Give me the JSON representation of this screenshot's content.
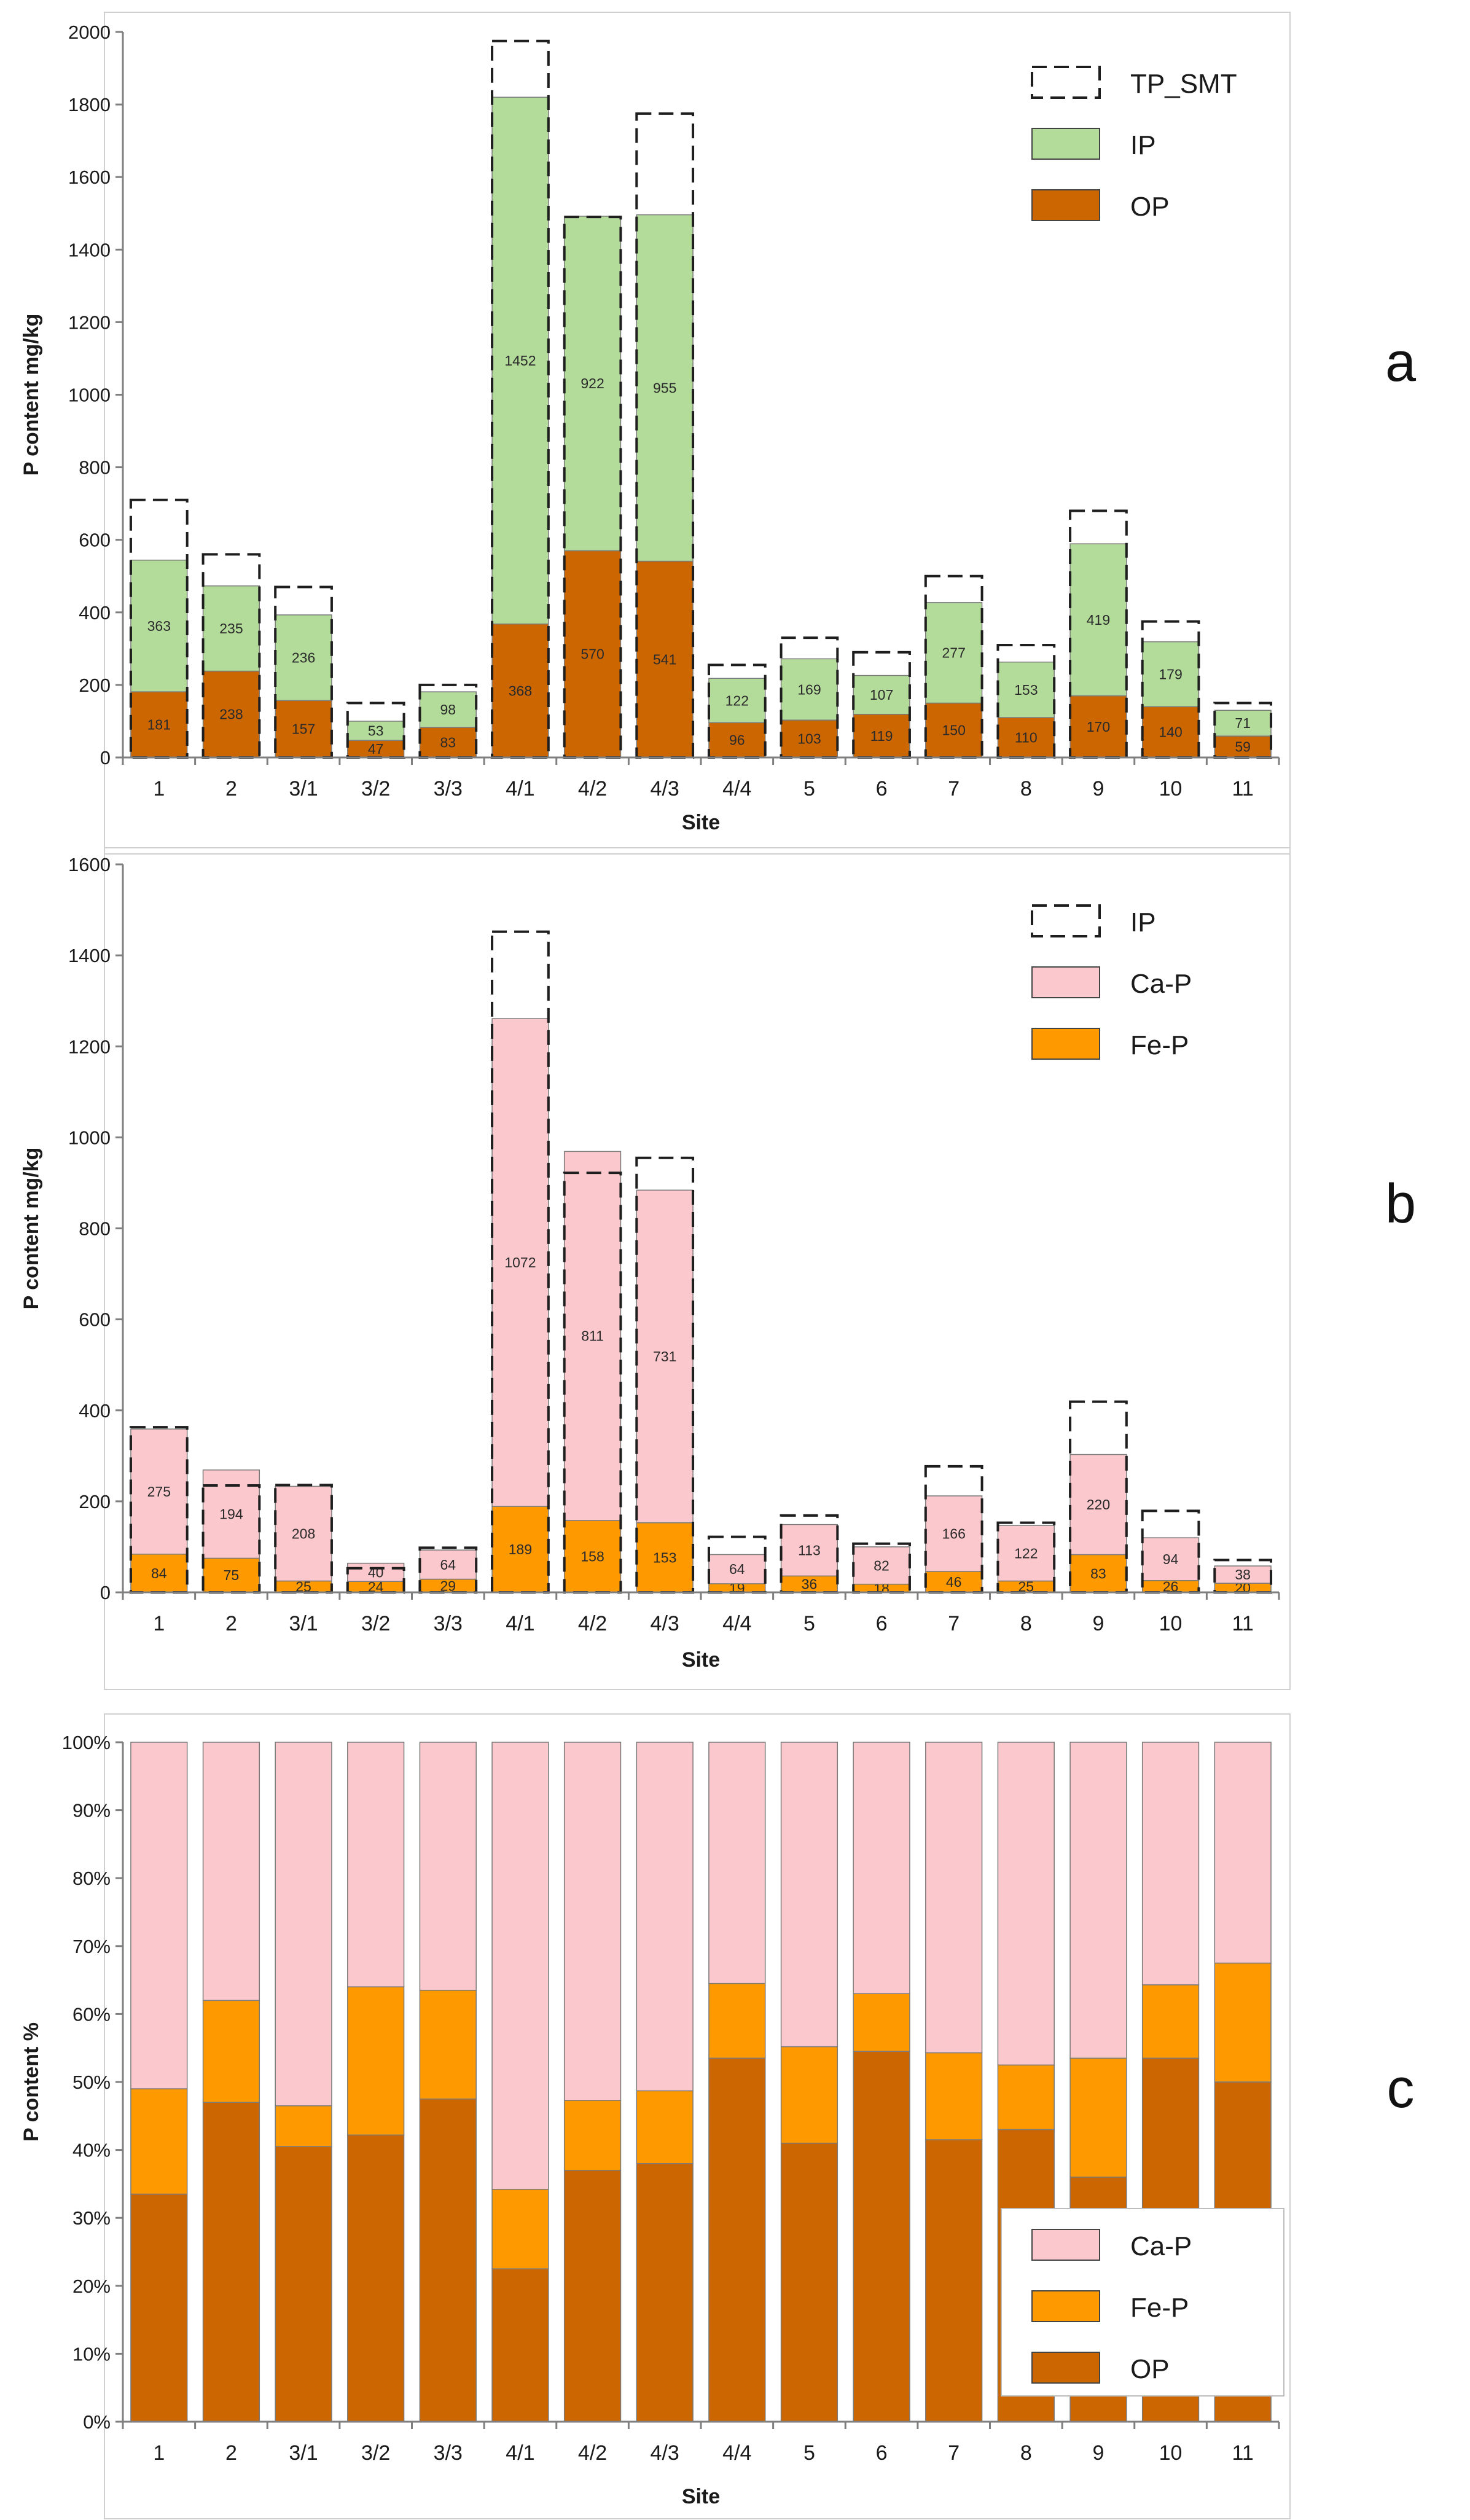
{
  "colors": {
    "ip": "#b3dc9a",
    "op": "#cc6600",
    "ca_p": "#fbc9cd",
    "fe_p": "#ff9900",
    "dash": "#1e1e1e",
    "axis": "#7f7f7f",
    "frame": "#d0d0d0"
  },
  "chart_data": [
    {
      "id": "a",
      "panel_label": "a",
      "type": "bar",
      "stacked": true,
      "title": "",
      "xlabel": "Site",
      "ylabel": "P content mg/kg",
      "ylim": [
        0,
        2000
      ],
      "yticks": [
        "0",
        "200",
        "400",
        "600",
        "800",
        "1000",
        "1200",
        "1400",
        "1600",
        "1800",
        "2000"
      ],
      "categories": [
        "1",
        "2",
        "3/1",
        "3/2",
        "3/3",
        "4/1",
        "4/2",
        "4/3",
        "4/4",
        "5",
        "6",
        "7",
        "8",
        "9",
        "10",
        "11"
      ],
      "series": [
        {
          "name": "OP",
          "color_key": "op",
          "labels": true,
          "values": [
            181,
            238,
            157,
            47,
            83,
            368,
            570,
            541,
            96,
            103,
            119,
            150,
            110,
            170,
            140,
            59
          ]
        },
        {
          "name": "IP",
          "color_key": "ip",
          "labels": true,
          "values": [
            363,
            235,
            236,
            53,
            98,
            1452,
            922,
            955,
            122,
            169,
            107,
            277,
            153,
            419,
            179,
            71
          ]
        }
      ],
      "outline": {
        "name": "TP_SMT",
        "values": [
          710,
          560,
          470,
          150,
          200,
          1975,
          1490,
          1775,
          255,
          330,
          290,
          500,
          310,
          680,
          375,
          150
        ]
      },
      "legend": {
        "position": "top-right",
        "items": [
          {
            "label": "TP_SMT",
            "style": "dashed"
          },
          {
            "label": "IP",
            "color_key": "ip"
          },
          {
            "label": "OP",
            "color_key": "op"
          }
        ]
      }
    },
    {
      "id": "b",
      "panel_label": "b",
      "type": "bar",
      "stacked": true,
      "title": "",
      "xlabel": "Site",
      "ylabel": "P content mg/kg",
      "ylim": [
        0,
        1600
      ],
      "yticks": [
        "0",
        "200",
        "400",
        "600",
        "800",
        "1000",
        "1200",
        "1400",
        "1600"
      ],
      "categories": [
        "1",
        "2",
        "3/1",
        "3/2",
        "3/3",
        "4/1",
        "4/2",
        "4/3",
        "4/4",
        "5",
        "6",
        "7",
        "8",
        "9",
        "10",
        "11"
      ],
      "series": [
        {
          "name": "Fe-P",
          "color_key": "fe_p",
          "labels": true,
          "values": [
            84,
            75,
            25,
            24,
            29,
            189,
            158,
            153,
            19,
            36,
            18,
            46,
            25,
            83,
            26,
            20
          ]
        },
        {
          "name": "Ca-P",
          "color_key": "ca_p",
          "labels": true,
          "values": [
            275,
            194,
            208,
            40,
            64,
            1072,
            811,
            731,
            64,
            113,
            82,
            166,
            122,
            220,
            94,
            38
          ]
        }
      ],
      "outline": {
        "name": "IP",
        "values": [
          363,
          235,
          236,
          53,
          98,
          1452,
          922,
          955,
          122,
          169,
          107,
          277,
          153,
          419,
          179,
          71
        ]
      },
      "legend": {
        "position": "top-right",
        "items": [
          {
            "label": "IP",
            "style": "dashed"
          },
          {
            "label": "Ca-P",
            "color_key": "ca_p"
          },
          {
            "label": "Fe-P",
            "color_key": "fe_p"
          }
        ]
      }
    },
    {
      "id": "c",
      "panel_label": "c",
      "type": "bar",
      "stacked": true,
      "percent": true,
      "title": "",
      "xlabel": "Site",
      "ylabel": "P content %",
      "ylim": [
        0,
        100
      ],
      "yticks": [
        "0%",
        "10%",
        "20%",
        "30%",
        "40%",
        "50%",
        "60%",
        "70%",
        "80%",
        "90%",
        "100%"
      ],
      "categories": [
        "1",
        "2",
        "3/1",
        "3/2",
        "3/3",
        "4/1",
        "4/2",
        "4/3",
        "4/4",
        "5",
        "6",
        "7",
        "8",
        "9",
        "10",
        "11"
      ],
      "series": [
        {
          "name": "OP",
          "color_key": "op",
          "labels": false,
          "values": [
            33.5,
            47.0,
            40.5,
            42.2,
            47.5,
            22.5,
            37.0,
            38.0,
            53.5,
            41.0,
            54.5,
            41.5,
            43.0,
            36.0,
            53.5,
            50.0
          ]
        },
        {
          "name": "Fe-P",
          "color_key": "fe_p",
          "labels": false,
          "values": [
            15.5,
            15.0,
            6.0,
            21.8,
            16.0,
            11.7,
            10.3,
            10.7,
            11.0,
            14.2,
            8.5,
            12.8,
            9.5,
            17.5,
            10.8,
            17.5
          ]
        },
        {
          "name": "Ca-P",
          "color_key": "ca_p",
          "labels": false,
          "values": [
            51.0,
            38.0,
            53.5,
            36.0,
            36.5,
            65.8,
            52.7,
            51.3,
            35.5,
            44.8,
            37.0,
            45.7,
            47.5,
            46.5,
            35.7,
            32.5
          ]
        }
      ],
      "legend": {
        "position": "bottom-right",
        "items": [
          {
            "label": "Ca-P",
            "color_key": "ca_p"
          },
          {
            "label": "Fe-P",
            "color_key": "fe_p"
          },
          {
            "label": "OP",
            "color_key": "op"
          }
        ]
      }
    }
  ]
}
